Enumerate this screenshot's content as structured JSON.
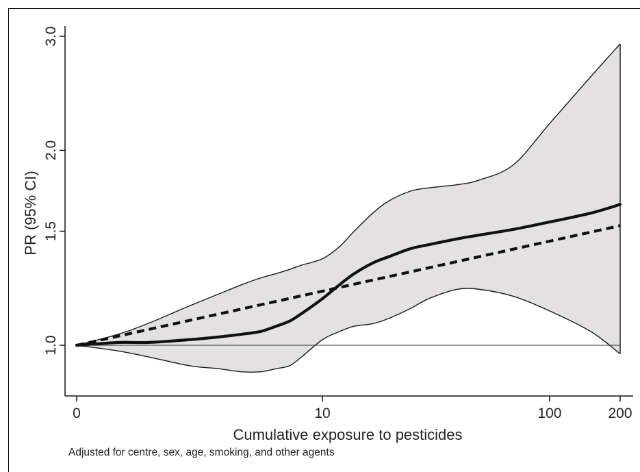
{
  "chart_data": {
    "type": "line",
    "title": "",
    "xlabel": "Cumulative exposure to pesticides",
    "ylabel": "PR (95% CI)",
    "note": "Adjusted for centre, sex, age, smoking, and other agents",
    "x_scale": "log(x+1)",
    "y_scale": "log",
    "xlim": [
      0,
      200
    ],
    "ylim": [
      0.88,
      3.0
    ],
    "x_ticks": [
      0,
      10,
      100,
      200
    ],
    "x_tick_labels": [
      "0",
      "10",
      "100",
      "200"
    ],
    "y_ticks": [
      1.0,
      1.5,
      2.0,
      3.0
    ],
    "y_tick_labels": [
      "1.0",
      "1.5",
      "2.0",
      "3.0"
    ],
    "reference_line": 1.0,
    "grid": false,
    "series": [
      {
        "style": "solid",
        "x": [
          0,
          0.5,
          1,
          2,
          3,
          4,
          5,
          6,
          7,
          8,
          10,
          12,
          14,
          17,
          20,
          25,
          30,
          40,
          50,
          70,
          100,
          150,
          200
        ],
        "y": [
          1.0,
          1.01,
          1.01,
          1.02,
          1.03,
          1.04,
          1.05,
          1.07,
          1.09,
          1.12,
          1.18,
          1.24,
          1.29,
          1.34,
          1.37,
          1.41,
          1.43,
          1.46,
          1.48,
          1.51,
          1.55,
          1.6,
          1.65
        ]
      },
      {
        "style": "dashed",
        "x": [
          0,
          200
        ],
        "y": [
          1.0,
          1.53
        ]
      },
      {
        "style": "confidence-band",
        "x": [
          0,
          0.5,
          1,
          2,
          3,
          4,
          5,
          6,
          7,
          8,
          10,
          12,
          14,
          17,
          20,
          25,
          30,
          40,
          50,
          70,
          100,
          150,
          200
        ],
        "lower": [
          1.0,
          0.98,
          0.96,
          0.93,
          0.92,
          0.91,
          0.91,
          0.92,
          0.93,
          0.96,
          1.02,
          1.05,
          1.07,
          1.08,
          1.1,
          1.14,
          1.18,
          1.22,
          1.22,
          1.19,
          1.13,
          1.05,
          0.97
        ],
        "upper": [
          1.0,
          1.04,
          1.08,
          1.15,
          1.2,
          1.24,
          1.27,
          1.29,
          1.31,
          1.33,
          1.36,
          1.42,
          1.5,
          1.6,
          1.67,
          1.73,
          1.75,
          1.77,
          1.8,
          1.9,
          2.2,
          2.6,
          2.92
        ]
      }
    ]
  }
}
